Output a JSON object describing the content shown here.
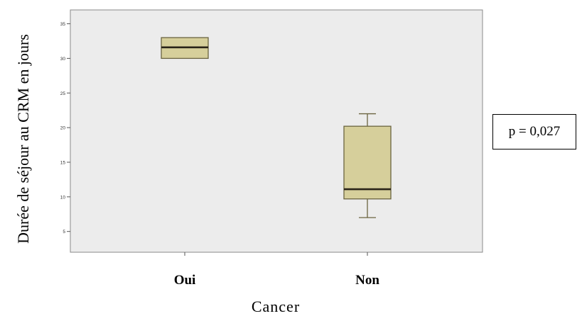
{
  "chart_data": {
    "type": "box",
    "xlabel": "Cancer",
    "ylabel": "Durée de séjour au CRM en jours",
    "categories": [
      "Oui",
      "Non"
    ],
    "ylim": [
      2,
      37
    ],
    "yticks": [
      5,
      10,
      15,
      20,
      25,
      30,
      35
    ],
    "ytick_labels": [
      "5",
      "10",
      "15",
      "20",
      "25",
      "30",
      "35"
    ],
    "boxes": [
      {
        "category": "Oui",
        "whisker_low": 30,
        "q1": 30,
        "median": 31.6,
        "q3": 33,
        "whisker_high": 33
      },
      {
        "category": "Non",
        "whisker_low": 7,
        "q1": 9.7,
        "median": 11.1,
        "q3": 20.2,
        "whisker_high": 22
      }
    ],
    "grid": false,
    "colors": {
      "plot_background": "#ececec",
      "box_fill": "#d6cf9b",
      "box_stroke": "#6b6440",
      "median": "#2a2418"
    }
  },
  "annotation": {
    "pvalue_text": "p = 0,027"
  }
}
